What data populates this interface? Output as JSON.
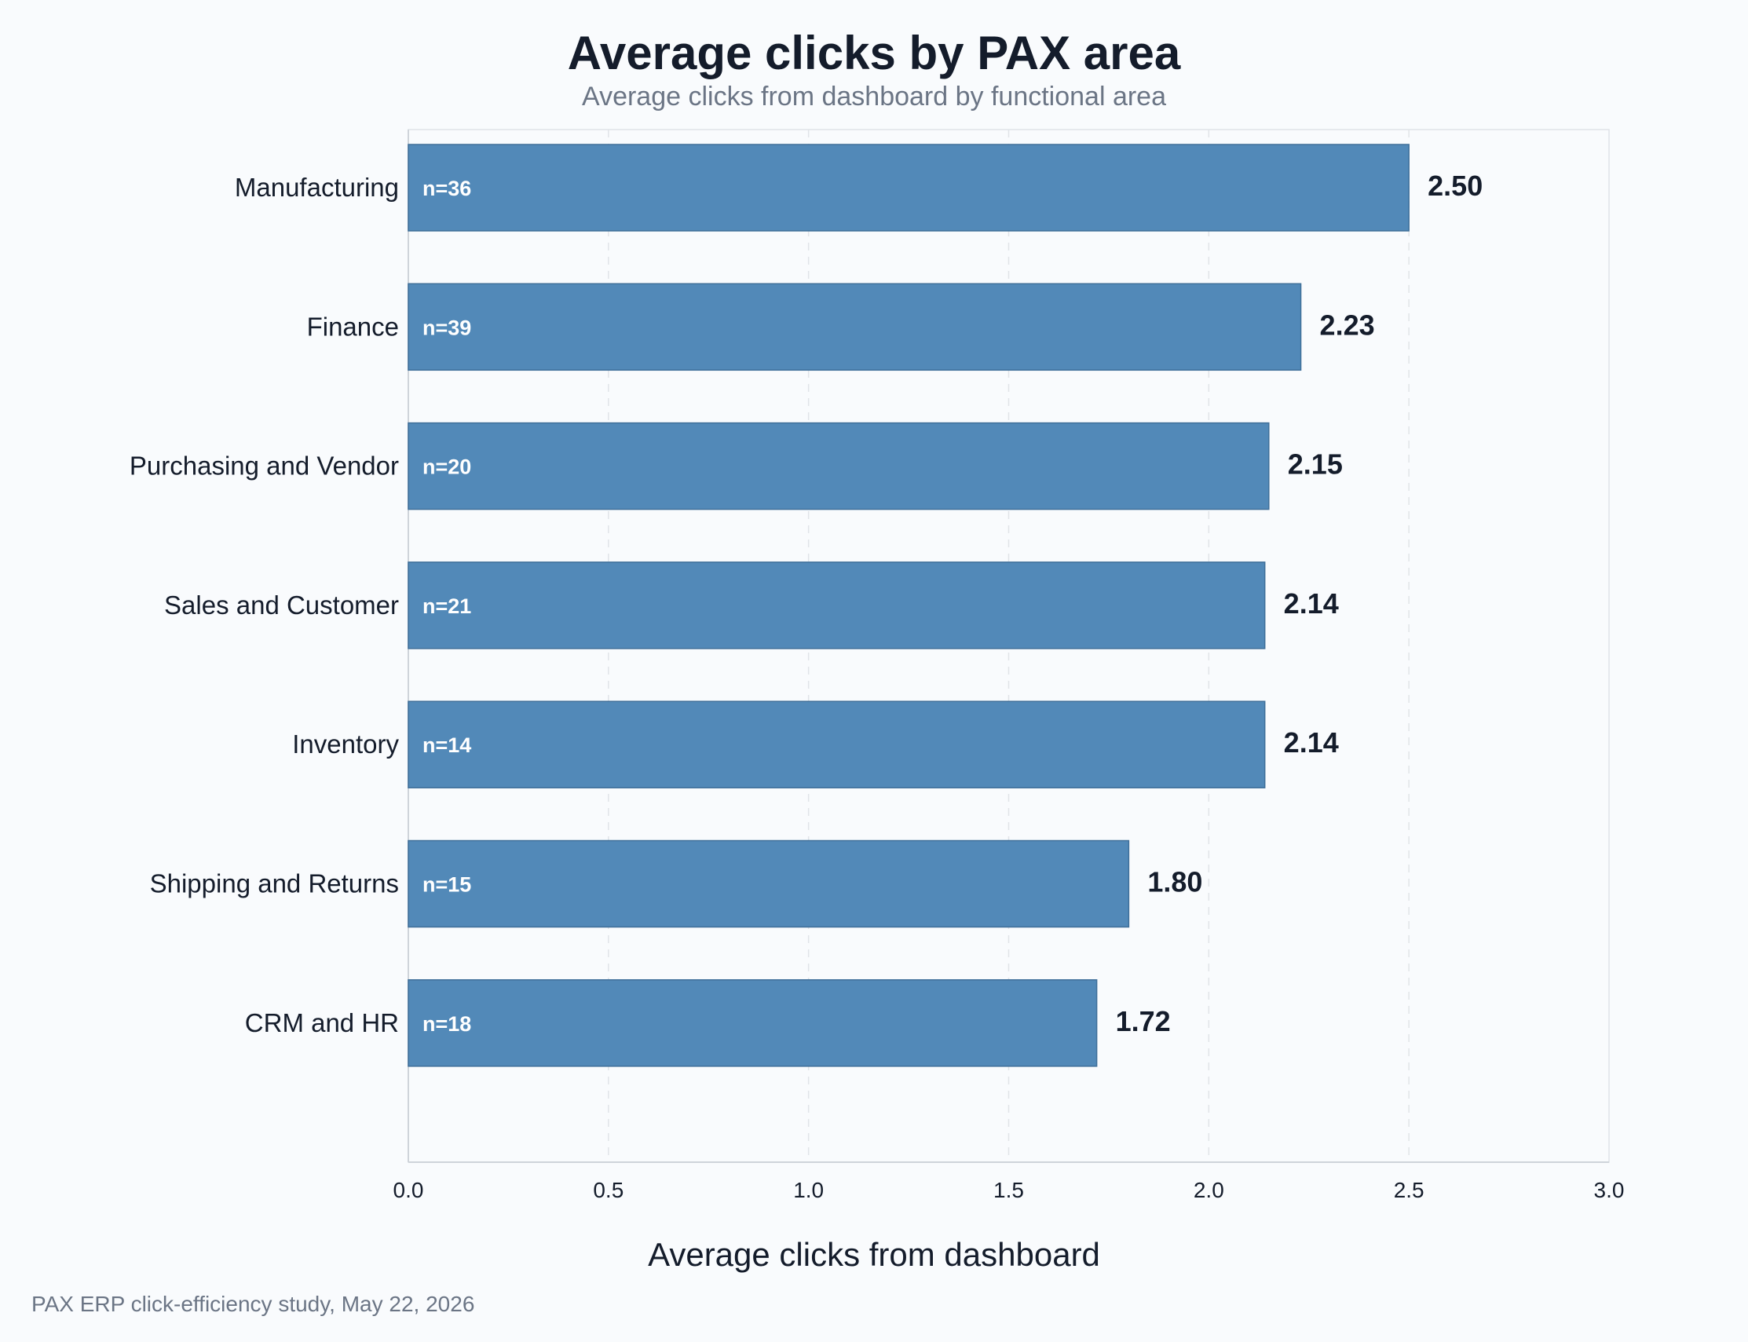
{
  "chart_data": {
    "type": "bar",
    "orientation": "horizontal",
    "title": "Average clicks by PAX area",
    "subtitle": "Average clicks from dashboard by functional area",
    "xlabel": "Average clicks from dashboard",
    "ylabel": "",
    "xlim": [
      0,
      3.0
    ],
    "xticks": [
      "0.0",
      "0.5",
      "1.0",
      "1.5",
      "2.0",
      "2.5",
      "3.0"
    ],
    "grid": "vertical dashed",
    "categories": [
      "Manufacturing",
      "Finance",
      "Purchasing and Vendor",
      "Sales and Customer",
      "Inventory",
      "Shipping and Returns",
      "CRM and HR"
    ],
    "values": [
      2.5,
      2.23,
      2.15,
      2.14,
      2.14,
      1.8,
      1.72
    ],
    "value_labels": [
      "2.50",
      "2.23",
      "2.15",
      "2.14",
      "2.14",
      "1.80",
      "1.72"
    ],
    "n_labels": [
      "n=36",
      "n=39",
      "n=20",
      "n=21",
      "n=14",
      "n=15",
      "n=18"
    ],
    "bar_color": "#5289b8",
    "bar_edge_color": "#3f6f99",
    "footer": "PAX ERP click-efficiency study, May 22, 2026"
  }
}
